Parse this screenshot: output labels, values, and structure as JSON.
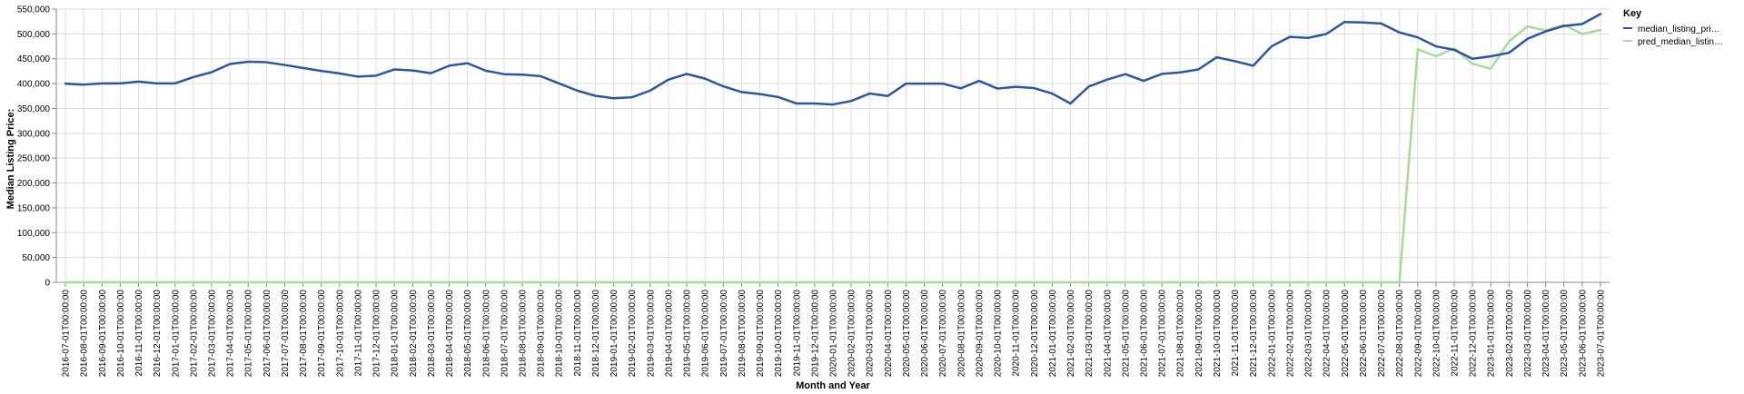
{
  "chart_data": {
    "type": "line",
    "xlabel": "Month and Year",
    "ylabel": "Median Listing Price:",
    "ylim": [
      0,
      550000
    ],
    "yticks": [
      0,
      50000,
      100000,
      150000,
      200000,
      250000,
      300000,
      350000,
      400000,
      450000,
      500000,
      550000
    ],
    "ytick_labels": [
      "0",
      "50,000",
      "100,000",
      "150,000",
      "200,000",
      "250,000",
      "300,000",
      "350,000",
      "400,000",
      "450,000",
      "500,000",
      "550,000"
    ],
    "grid": true,
    "legend": {
      "title": "Key",
      "position": "right",
      "entries": [
        "median_listing_pri…",
        "pred_median_listin…"
      ]
    },
    "x": [
      "2016-07-01T00:00:00",
      "2016-08-01T00:00:00",
      "2016-09-01T00:00:00",
      "2016-10-01T00:00:00",
      "2016-11-01T00:00:00",
      "2016-12-01T00:00:00",
      "2017-01-01T00:00:00",
      "2017-02-01T00:00:00",
      "2017-03-01T00:00:00",
      "2017-04-01T00:00:00",
      "2017-05-01T00:00:00",
      "2017-06-01T00:00:00",
      "2017-07-01T00:00:00",
      "2017-08-01T00:00:00",
      "2017-09-01T00:00:00",
      "2017-10-01T00:00:00",
      "2017-11-01T00:00:00",
      "2017-12-01T00:00:00",
      "2018-01-01T00:00:00",
      "2018-02-01T00:00:00",
      "2018-03-01T00:00:00",
      "2018-04-01T00:00:00",
      "2018-05-01T00:00:00",
      "2018-06-01T00:00:00",
      "2018-07-01T00:00:00",
      "2018-08-01T00:00:00",
      "2018-09-01T00:00:00",
      "2018-10-01T00:00:00",
      "2018-11-01T00:00:00",
      "2018-12-01T00:00:00",
      "2019-01-01T00:00:00",
      "2019-02-01T00:00:00",
      "2019-03-01T00:00:00",
      "2019-04-01T00:00:00",
      "2019-05-01T00:00:00",
      "2019-06-01T00:00:00",
      "2019-07-01T00:00:00",
      "2019-08-01T00:00:00",
      "2019-09-01T00:00:00",
      "2019-10-01T00:00:00",
      "2019-11-01T00:00:00",
      "2019-12-01T00:00:00",
      "2020-01-01T00:00:00",
      "2020-02-01T00:00:00",
      "2020-03-01T00:00:00",
      "2020-04-01T00:00:00",
      "2020-05-01T00:00:00",
      "2020-06-01T00:00:00",
      "2020-07-01T00:00:00",
      "2020-08-01T00:00:00",
      "2020-09-01T00:00:00",
      "2020-10-01T00:00:00",
      "2020-11-01T00:00:00",
      "2020-12-01T00:00:00",
      "2021-01-01T00:00:00",
      "2021-02-01T00:00:00",
      "2021-03-01T00:00:00",
      "2021-04-01T00:00:00",
      "2021-05-01T00:00:00",
      "2021-06-01T00:00:00",
      "2021-07-01T00:00:00",
      "2021-08-01T00:00:00",
      "2021-09-01T00:00:00",
      "2021-10-01T00:00:00",
      "2021-11-01T00:00:00",
      "2021-12-01T00:00:00",
      "2022-01-01T00:00:00",
      "2022-02-01T00:00:00",
      "2022-03-01T00:00:00",
      "2022-04-01T00:00:00",
      "2022-05-01T00:00:00",
      "2022-06-01T00:00:00",
      "2022-07-01T00:00:00",
      "2022-08-01T00:00:00",
      "2022-09-01T00:00:00",
      "2022-10-01T00:00:00",
      "2022-11-01T00:00:00",
      "2022-12-01T00:00:00",
      "2023-01-01T00:00:00",
      "2023-02-01T00:00:00",
      "2023-03-01T00:00:00",
      "2023-04-01T00:00:00",
      "2023-05-01T00:00:00",
      "2023-06-01T00:00:00",
      "2023-07-01T00:00:00"
    ],
    "series": [
      {
        "name": "median_listing_pri…",
        "color": "#2c56a0",
        "values": [
          400000,
          398000,
          400500,
          400500,
          404000,
          400500,
          400500,
          413000,
          423000,
          439500,
          444000,
          443000,
          437500,
          431500,
          425500,
          420500,
          414000,
          416000,
          428500,
          426500,
          421000,
          436000,
          441000,
          426000,
          419000,
          418000,
          415000,
          400500,
          386000,
          375500,
          370500,
          372500,
          386000,
          408000,
          419500,
          410000,
          394500,
          383000,
          379000,
          373000,
          360000,
          360000,
          358000,
          365000,
          380000,
          375000,
          400000,
          400000,
          400000,
          390500,
          405500,
          390000,
          393500,
          391000,
          380000,
          360000,
          394000,
          408000,
          419000,
          405500,
          419500,
          422500,
          428500,
          453000,
          445000,
          436000,
          475000,
          494000,
          492000,
          500000,
          524000,
          523000,
          521000,
          503000,
          493000,
          475000,
          468000,
          450000,
          455000,
          462000,
          490000,
          505000,
          516000,
          520000,
          540000
        ]
      },
      {
        "name": "pred_median_listin…",
        "color": "#a6dc9a",
        "values": [
          0,
          0,
          0,
          0,
          0,
          0,
          0,
          0,
          0,
          0,
          0,
          0,
          0,
          0,
          0,
          0,
          0,
          0,
          0,
          0,
          0,
          0,
          0,
          0,
          0,
          0,
          0,
          0,
          0,
          0,
          0,
          0,
          0,
          0,
          0,
          0,
          0,
          0,
          0,
          0,
          0,
          0,
          0,
          0,
          0,
          0,
          0,
          0,
          0,
          0,
          0,
          0,
          0,
          0,
          0,
          0,
          0,
          0,
          0,
          0,
          0,
          0,
          0,
          0,
          0,
          0,
          0,
          0,
          0,
          0,
          0,
          0,
          0,
          0,
          469000,
          455000,
          471000,
          440000,
          430000,
          485000,
          515000,
          507000,
          518000,
          500000,
          508000
        ]
      }
    ]
  }
}
